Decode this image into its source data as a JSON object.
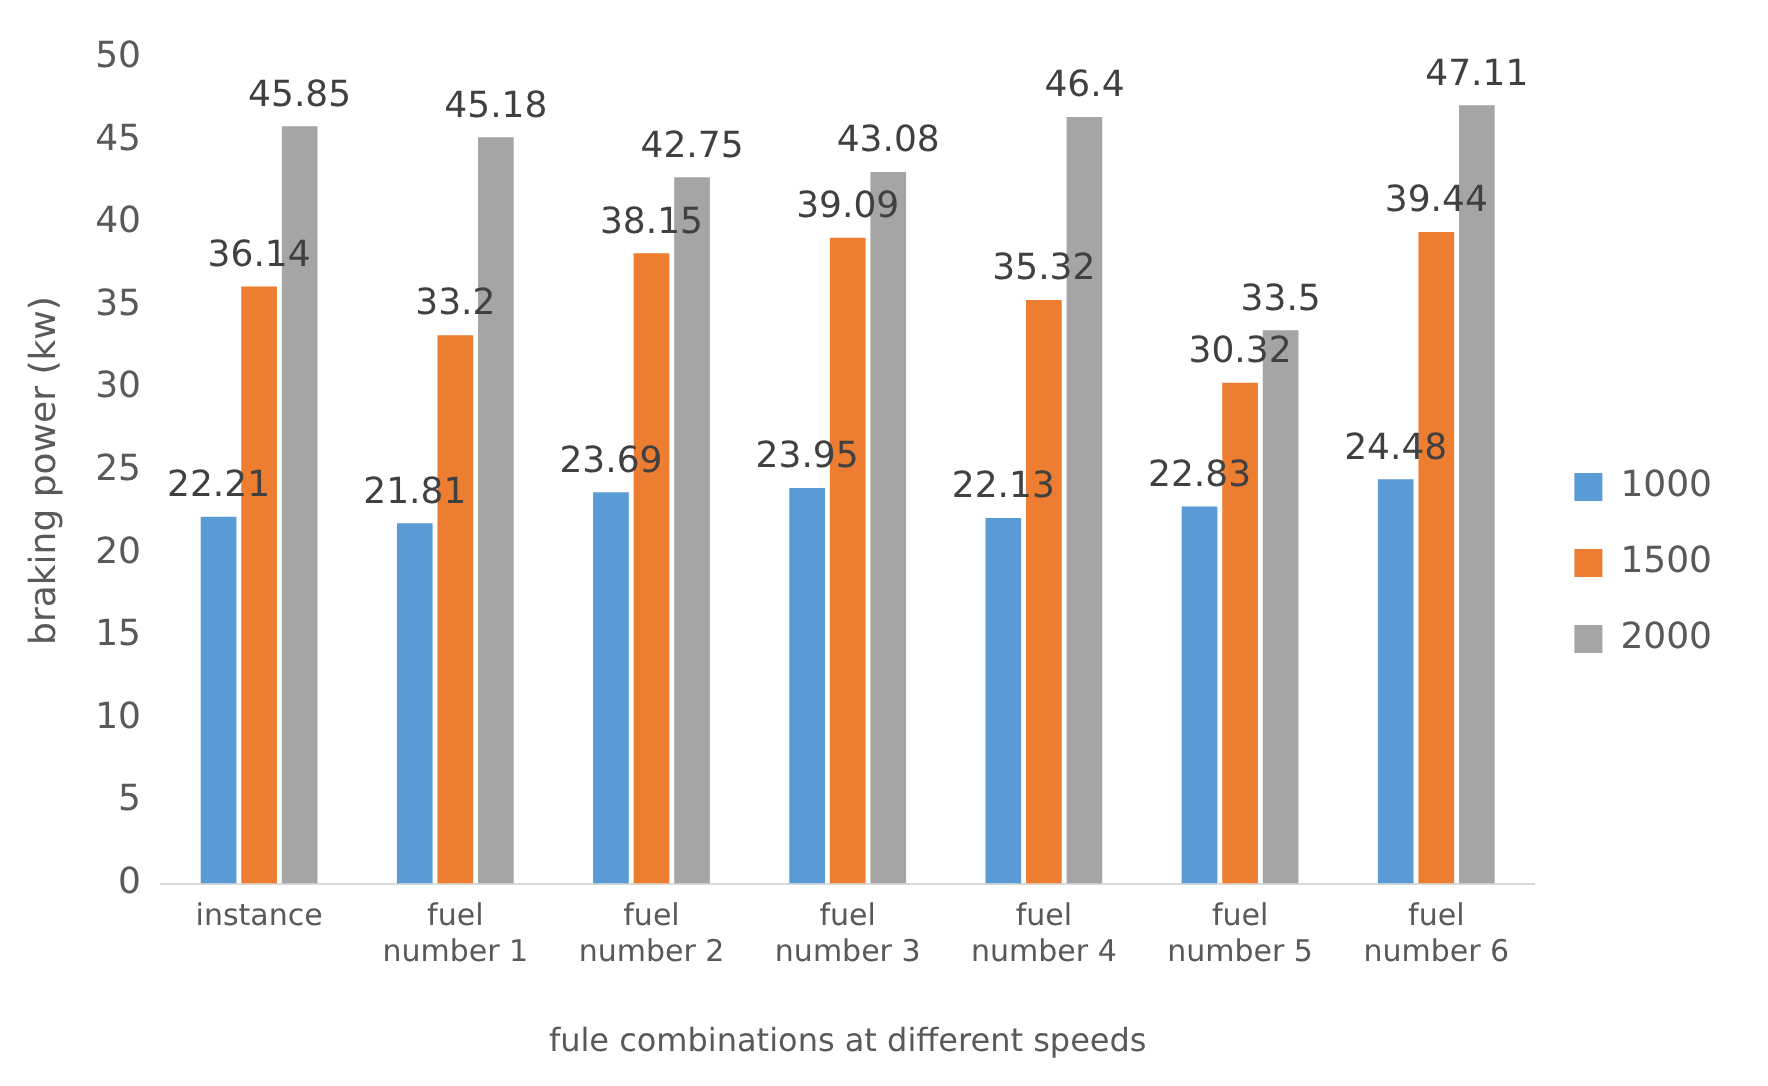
{
  "chart_data": {
    "type": "bar",
    "xlabel": "fule combinations at different speeds",
    "ylabel": "braking power (kw)",
    "categories": [
      "instance",
      "fuel number 1",
      "fuel number 2",
      "fuel number 3",
      "fuel number 4",
      "fuel number 5",
      "fuel number 6"
    ],
    "series": [
      {
        "name": "1000",
        "color": "#5b9bd5",
        "values": [
          22.21,
          21.81,
          23.69,
          23.95,
          22.13,
          22.83,
          24.48
        ]
      },
      {
        "name": "1500",
        "color": "#ed7d31",
        "values": [
          36.14,
          33.2,
          38.15,
          39.09,
          35.32,
          30.32,
          39.44
        ]
      },
      {
        "name": "2000",
        "color": "#a5a5a5",
        "values": [
          45.85,
          45.18,
          42.75,
          43.08,
          46.4,
          33.5,
          47.11
        ]
      }
    ],
    "ylim": [
      0,
      50
    ],
    "yticks": [
      0,
      5,
      10,
      15,
      20,
      25,
      30,
      35,
      40,
      45,
      50
    ],
    "grid": false,
    "legend": "right",
    "data_labels": true
  }
}
